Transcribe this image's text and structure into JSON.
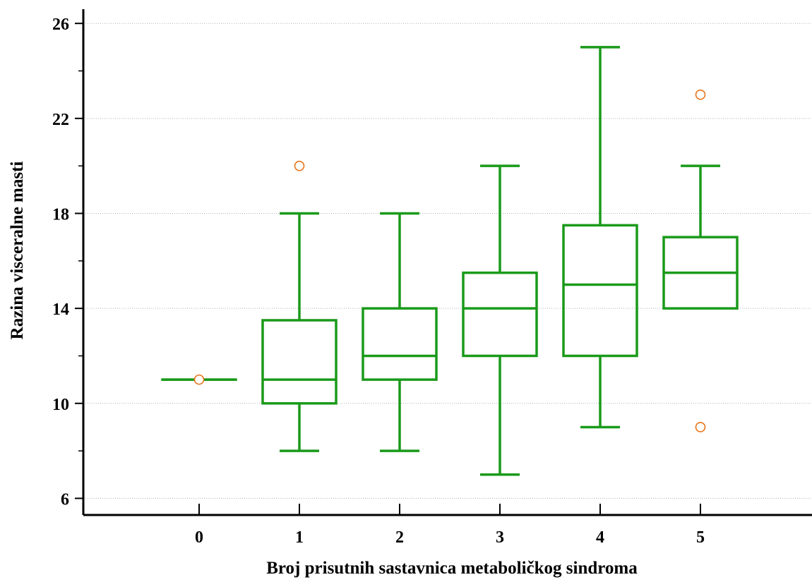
{
  "chart_data": {
    "type": "box",
    "title": "",
    "xlabel": "Broj prisutnih sastavnica metaboličkog sindroma",
    "ylabel": "Razina visceralne masti",
    "categories": [
      "0",
      "1",
      "2",
      "3",
      "4",
      "5"
    ],
    "y_ticks": [
      "6",
      "10",
      "14",
      "18",
      "22",
      "26"
    ],
    "ylim": [
      5.3,
      26.6
    ],
    "grid": "horizontal dotted at major ticks",
    "colors": {
      "box": "#1a9a1a",
      "outlier": "#e8731a",
      "grid": "#b0b0b0",
      "axis": "#000000"
    },
    "boxes": [
      {
        "category": "0",
        "whisker_low": 11,
        "q1": 11,
        "median": 11,
        "q3": 11,
        "whisker_high": 11,
        "outliers": [
          11
        ]
      },
      {
        "category": "1",
        "whisker_low": 8,
        "q1": 10,
        "median": 11,
        "q3": 13.5,
        "whisker_high": 18,
        "outliers": [
          20
        ]
      },
      {
        "category": "2",
        "whisker_low": 8,
        "q1": 11,
        "median": 12,
        "q3": 14,
        "whisker_high": 18,
        "outliers": []
      },
      {
        "category": "3",
        "whisker_low": 7,
        "q1": 12,
        "median": 14,
        "q3": 15.5,
        "whisker_high": 20,
        "outliers": []
      },
      {
        "category": "4",
        "whisker_low": 9,
        "q1": 12,
        "median": 15,
        "q3": 17.5,
        "whisker_high": 25,
        "outliers": []
      },
      {
        "category": "5",
        "whisker_low": 14,
        "q1": 14,
        "median": 15.5,
        "q3": 17,
        "whisker_high": 20,
        "outliers": [
          23,
          9
        ]
      }
    ]
  }
}
